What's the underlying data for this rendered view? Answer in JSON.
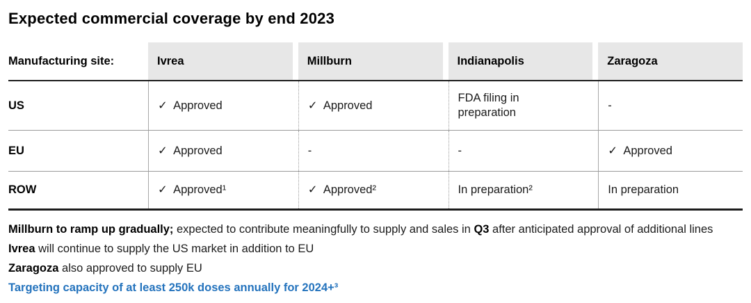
{
  "title": "Expected commercial coverage by end 2023",
  "colors": {
    "accent_blue": "#2473bd",
    "header_gray": "#e7e7e7",
    "rule_dark": "#1c1c1c",
    "rule_light": "#999999"
  },
  "table": {
    "header": [
      "Manufacturing site:",
      "Ivrea",
      "Millburn",
      "Indianapolis",
      "Zaragoza"
    ],
    "rows": [
      {
        "label": "US",
        "cells": [
          "✓  Approved",
          "✓  Approved",
          "FDA filing in\npreparation",
          "-"
        ]
      },
      {
        "label": "EU",
        "cells": [
          "✓  Approved",
          "-",
          "-",
          "✓  Approved"
        ]
      },
      {
        "label": "ROW",
        "cells": [
          "✓  Approved¹",
          "✓  Approved²",
          "In preparation²",
          "In preparation"
        ]
      }
    ]
  },
  "footnotes": {
    "line1": [
      {
        "text": "Millburn to ramp up gradually;"
      },
      {
        "text": " expected to contribute meaningfully to supply and sales in "
      },
      {
        "text": "Q3"
      },
      {
        "text": " after anticipated approval of additional lines"
      }
    ],
    "line2": [
      {
        "text": "Ivrea"
      },
      {
        "text": " will continue to supply the US market in addition to EU"
      }
    ],
    "line3": [
      {
        "text": "Zaragoza"
      },
      {
        "text": " also approved to supply EU"
      }
    ],
    "line4": [
      {
        "text": "Targeting capacity of at least 250k doses annually for 2024+³"
      }
    ]
  }
}
